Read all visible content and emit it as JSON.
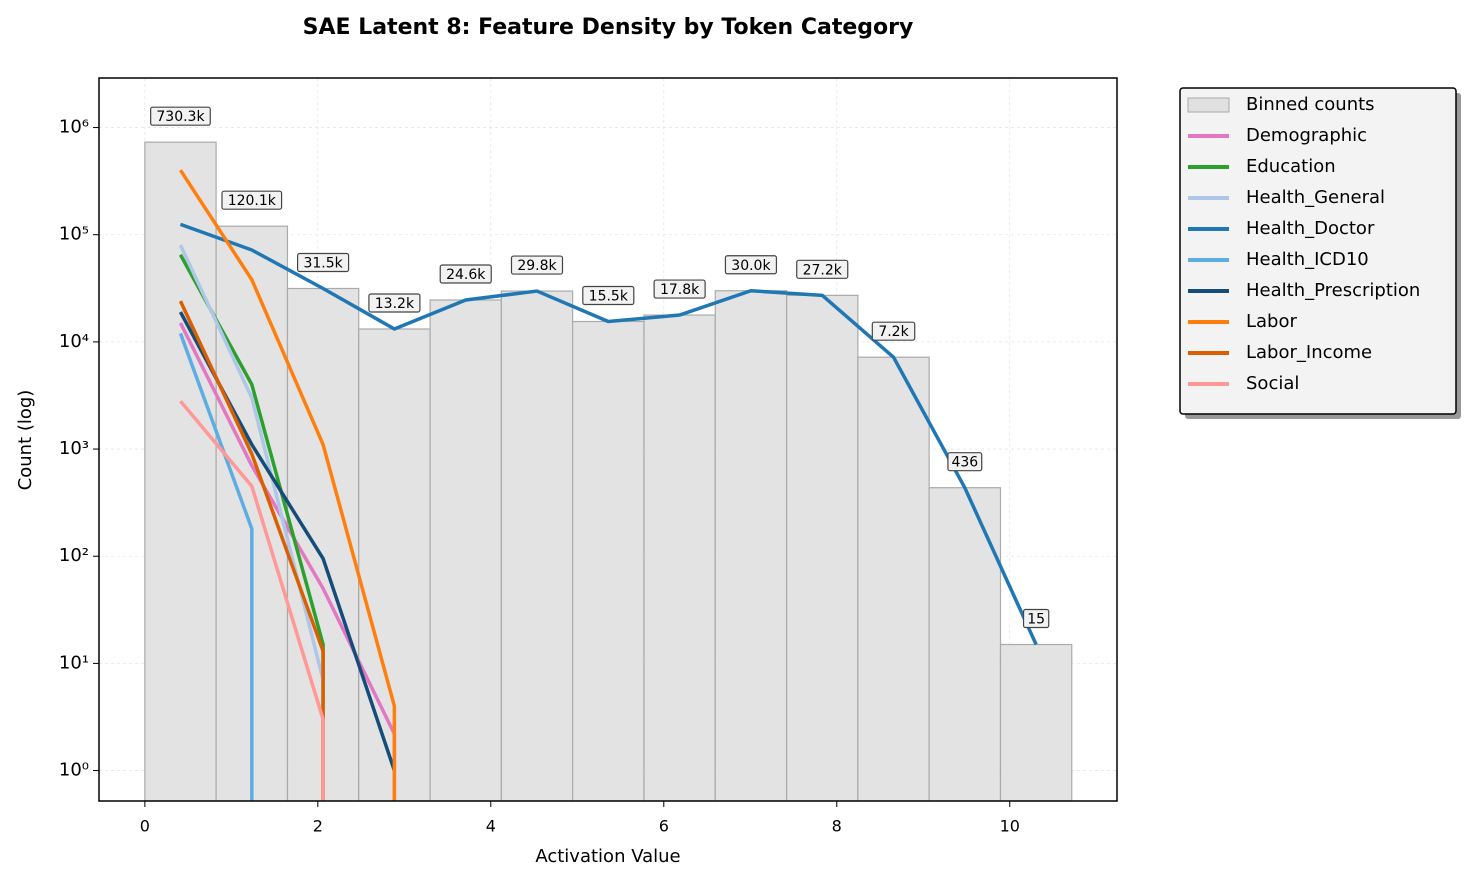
{
  "chart_data": {
    "type": "histogram",
    "title": "SAE Latent 8: Feature Density by Token Category",
    "x_label": "Activation Value",
    "y_label": "Count (log)",
    "name": "Binned counts",
    "color": "#e0e0e0",
    "bins": [
      0,
      0.824,
      1.649,
      2.473,
      3.298,
      4.122,
      4.946,
      5.771,
      6.595,
      7.42,
      8.244,
      9.068,
      9.893,
      10.717
    ],
    "values": [
      730300,
      120100,
      31500,
      13200,
      24600,
      29800,
      15500,
      17800,
      30000,
      27200,
      7200,
      436,
      15
    ],
    "value_labels": [
      "730.3k",
      "120.1k",
      "31.5k",
      "13.2k",
      "24.6k",
      "29.8k",
      "15.5k",
      "17.8k",
      "30.0k",
      "27.2k",
      "7.2k",
      "436",
      "15"
    ],
    "x": [
      0.412,
      1.237,
      2.061,
      2.885,
      3.71,
      4.534,
      5.358,
      6.183,
      7.007,
      7.832,
      8.656,
      9.48,
      10.305
    ],
    "series": [
      {
        "name": "Demographic",
        "color": "#e377c2",
        "values": [
          15000,
          700,
          50,
          2.2,
          0,
          null,
          null,
          null,
          null,
          null,
          null,
          null,
          null
        ]
      },
      {
        "name": "Education",
        "color": "#2ca02c",
        "values": [
          65000,
          4000,
          15,
          0,
          null,
          null,
          null,
          null,
          null,
          null,
          null,
          null,
          null
        ]
      },
      {
        "name": "Health_General",
        "color": "#aec7e8",
        "values": [
          80000,
          3000,
          7,
          0,
          null,
          null,
          null,
          null,
          null,
          null,
          null,
          null,
          null
        ]
      },
      {
        "name": "Health_Doctor",
        "color": "#1f77b4",
        "values": [
          125000,
          72000,
          31500,
          13200,
          24600,
          29800,
          15500,
          17800,
          30000,
          27200,
          7200,
          436,
          15
        ]
      },
      {
        "name": "Health_ICD10",
        "color": "#5dade2",
        "values": [
          12000,
          180,
          0,
          null,
          null,
          null,
          null,
          null,
          null,
          null,
          null,
          null,
          null
        ]
      },
      {
        "name": "Health_Prescription",
        "color": "#154c79",
        "values": [
          19000,
          1100,
          95,
          1,
          null,
          null,
          null,
          null,
          null,
          null,
          null,
          null,
          null
        ]
      },
      {
        "name": "Labor",
        "color": "#ff7f0e",
        "values": [
          400000,
          38000,
          1100,
          4,
          0,
          null,
          null,
          null,
          null,
          null,
          null,
          null,
          null
        ]
      },
      {
        "name": "Labor_Income",
        "color": "#d95f02",
        "values": [
          24000,
          900,
          13,
          0,
          null,
          null,
          null,
          null,
          null,
          null,
          null,
          null,
          null
        ]
      },
      {
        "name": "Social",
        "color": "#ff9896",
        "values": [
          2800,
          450,
          3,
          0,
          null,
          null,
          null,
          null,
          null,
          null,
          null,
          null,
          null
        ]
      }
    ],
    "xlim": [
      -0.53,
      11.24
    ],
    "ylim": [
      0.52,
      2900000
    ],
    "xticks": [
      0,
      2,
      4,
      6,
      8,
      10
    ],
    "yticks": [
      {
        "value": 1,
        "label": "10⁰"
      },
      {
        "value": 10,
        "label": "10¹"
      },
      {
        "value": 100,
        "label": "10²"
      },
      {
        "value": 1000,
        "label": "10³"
      },
      {
        "value": 10000,
        "label": "10⁴"
      },
      {
        "value": 100000,
        "label": "10⁵"
      },
      {
        "value": 1000000,
        "label": "10⁶"
      }
    ],
    "log_y": true,
    "grid": true,
    "legend": "outside-right"
  }
}
